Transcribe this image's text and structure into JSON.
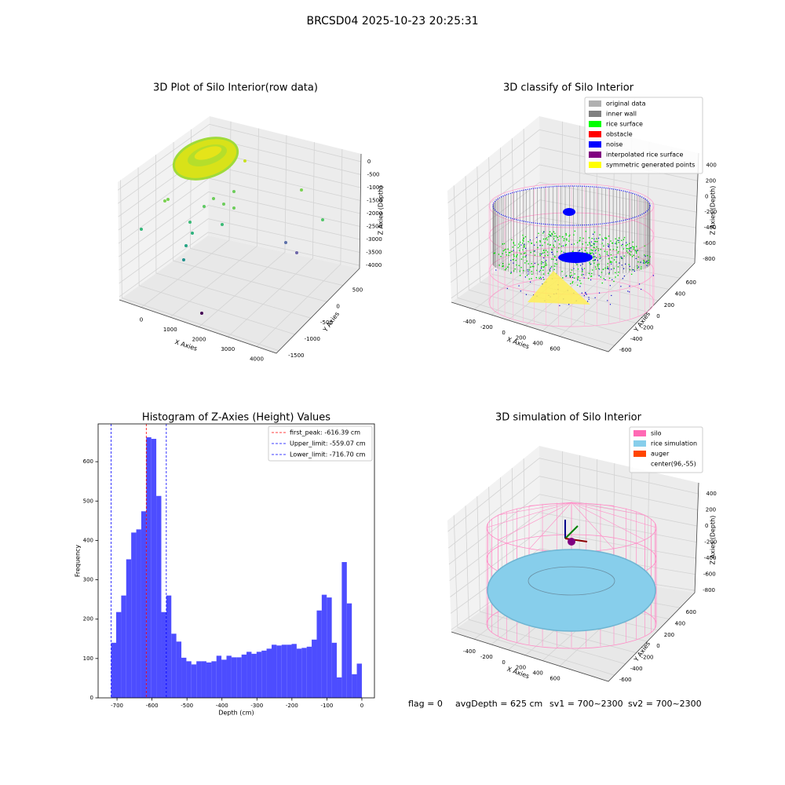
{
  "title": "BRCSD04 2025-10-23 20:25:31",
  "chart_data": [
    {
      "type": "scatter3d",
      "title": "3D Plot of Silo Interior(row data)",
      "xlabel": "X Axies",
      "ylabel": "Y Axies",
      "zlabel": "Z Axies (Depth)",
      "xticks": [
        0,
        1000,
        2000,
        3000,
        4000
      ],
      "yticks": [
        -1500,
        -1000,
        -500,
        0,
        500
      ],
      "zticks": [
        -4000,
        -3500,
        -3000,
        -2500,
        -2000,
        -1500,
        -1000,
        -500,
        0
      ]
    },
    {
      "type": "scatter3d",
      "title": "3D classify of Silo Interior",
      "xlabel": "X Axies",
      "ylabel": "Y Axies",
      "zlabel": "Z Axies (Depth)",
      "xticks": [
        -400,
        -200,
        0,
        200,
        400,
        600
      ],
      "yticks": [
        -600,
        -400,
        -200,
        0,
        200,
        400,
        600
      ],
      "zticks": [
        -800,
        -600,
        -400,
        -200,
        0,
        200,
        400
      ],
      "legend": [
        {
          "name": "original data",
          "color": "#b0b0b0"
        },
        {
          "name": "inner wall",
          "color": "#808080"
        },
        {
          "name": "rice surface",
          "color": "#00ff00"
        },
        {
          "name": "obstacle",
          "color": "#ff0000"
        },
        {
          "name": "noise",
          "color": "#0000ff"
        },
        {
          "name": "interpolated rice surface",
          "color": "#800080"
        },
        {
          "name": "symmetric generated points",
          "color": "#ffff00"
        }
      ]
    },
    {
      "type": "histogram",
      "title": "Histogram of Z-Axies (Height) Values",
      "xlabel": "Depth (cm)",
      "ylabel": "Frequency",
      "color": "#4d4dff",
      "bins": [
        -716.7,
        -702.4,
        -688.0,
        -673.7,
        -659.4,
        -645.0,
        -630.7,
        -616.4,
        -602.0,
        -587.7,
        -573.4,
        -559.0,
        -544.7,
        -530.4,
        -516.0,
        -501.7,
        -487.4,
        -473.0,
        -458.7,
        -444.4,
        -430.0,
        -415.7,
        -401.4,
        -387.0,
        -372.7,
        -358.4,
        -344.0,
        -329.7,
        -315.4,
        -301.0,
        -286.7,
        -272.4,
        -258.0,
        -243.7,
        -229.4,
        -215.0,
        -200.7,
        -186.4,
        -172.0,
        -157.7,
        -143.4,
        -129.0,
        -114.7,
        -100.4,
        -86.0,
        -71.7,
        -57.4,
        -43.0,
        -28.7,
        -14.4,
        0
      ],
      "counts": [
        140,
        218,
        260,
        352,
        420,
        428,
        474,
        662,
        658,
        513,
        218,
        260,
        163,
        143,
        102,
        93,
        85,
        93,
        93,
        90,
        93,
        107,
        97,
        107,
        103,
        103,
        110,
        117,
        112,
        117,
        120,
        125,
        135,
        133,
        135,
        135,
        137,
        125,
        127,
        130,
        148,
        222,
        262,
        255,
        140,
        52,
        345,
        240,
        60,
        87
      ],
      "xlim": [
        -754,
        36
      ],
      "ylim": [
        0,
        696
      ],
      "xticks": [
        -700,
        -600,
        -500,
        -400,
        -300,
        -200,
        -100,
        0
      ],
      "yticks": [
        0,
        100,
        200,
        300,
        400,
        500,
        600
      ],
      "vlines": [
        {
          "label": "first_peak: -616.39 cm",
          "value": -616.39,
          "color": "#ff0000"
        },
        {
          "label": "Upper_limit: -559.07 cm",
          "value": -559.07,
          "color": "#0000ff"
        },
        {
          "label": "Lower_limit: -716.70 cm",
          "value": -716.7,
          "color": "#0000ff"
        }
      ],
      "legend_position": "upper right"
    },
    {
      "type": "scatter3d",
      "title": "3D simulation of Silo Interior",
      "xlabel": "X Axies",
      "ylabel": "Y Axies",
      "zlabel": "Z Axies (Depth)",
      "xticks": [
        -400,
        -200,
        0,
        200,
        400,
        600
      ],
      "yticks": [
        -600,
        -400,
        -200,
        0,
        200,
        400,
        600
      ],
      "zticks": [
        -800,
        -600,
        -400,
        -200,
        0,
        200,
        400
      ],
      "legend": [
        {
          "name": "silo",
          "color": "#ff69b4"
        },
        {
          "name": "rice simulation",
          "color": "#87ceeb"
        },
        {
          "name": "auger",
          "color": "#ff4500"
        },
        {
          "name": "center(96,-55)"
        }
      ]
    }
  ],
  "footer": [
    "flag = 0",
    "avgDepth = 625 cm",
    "sv1 = 700~2300",
    "sv2 = 700~2300"
  ]
}
